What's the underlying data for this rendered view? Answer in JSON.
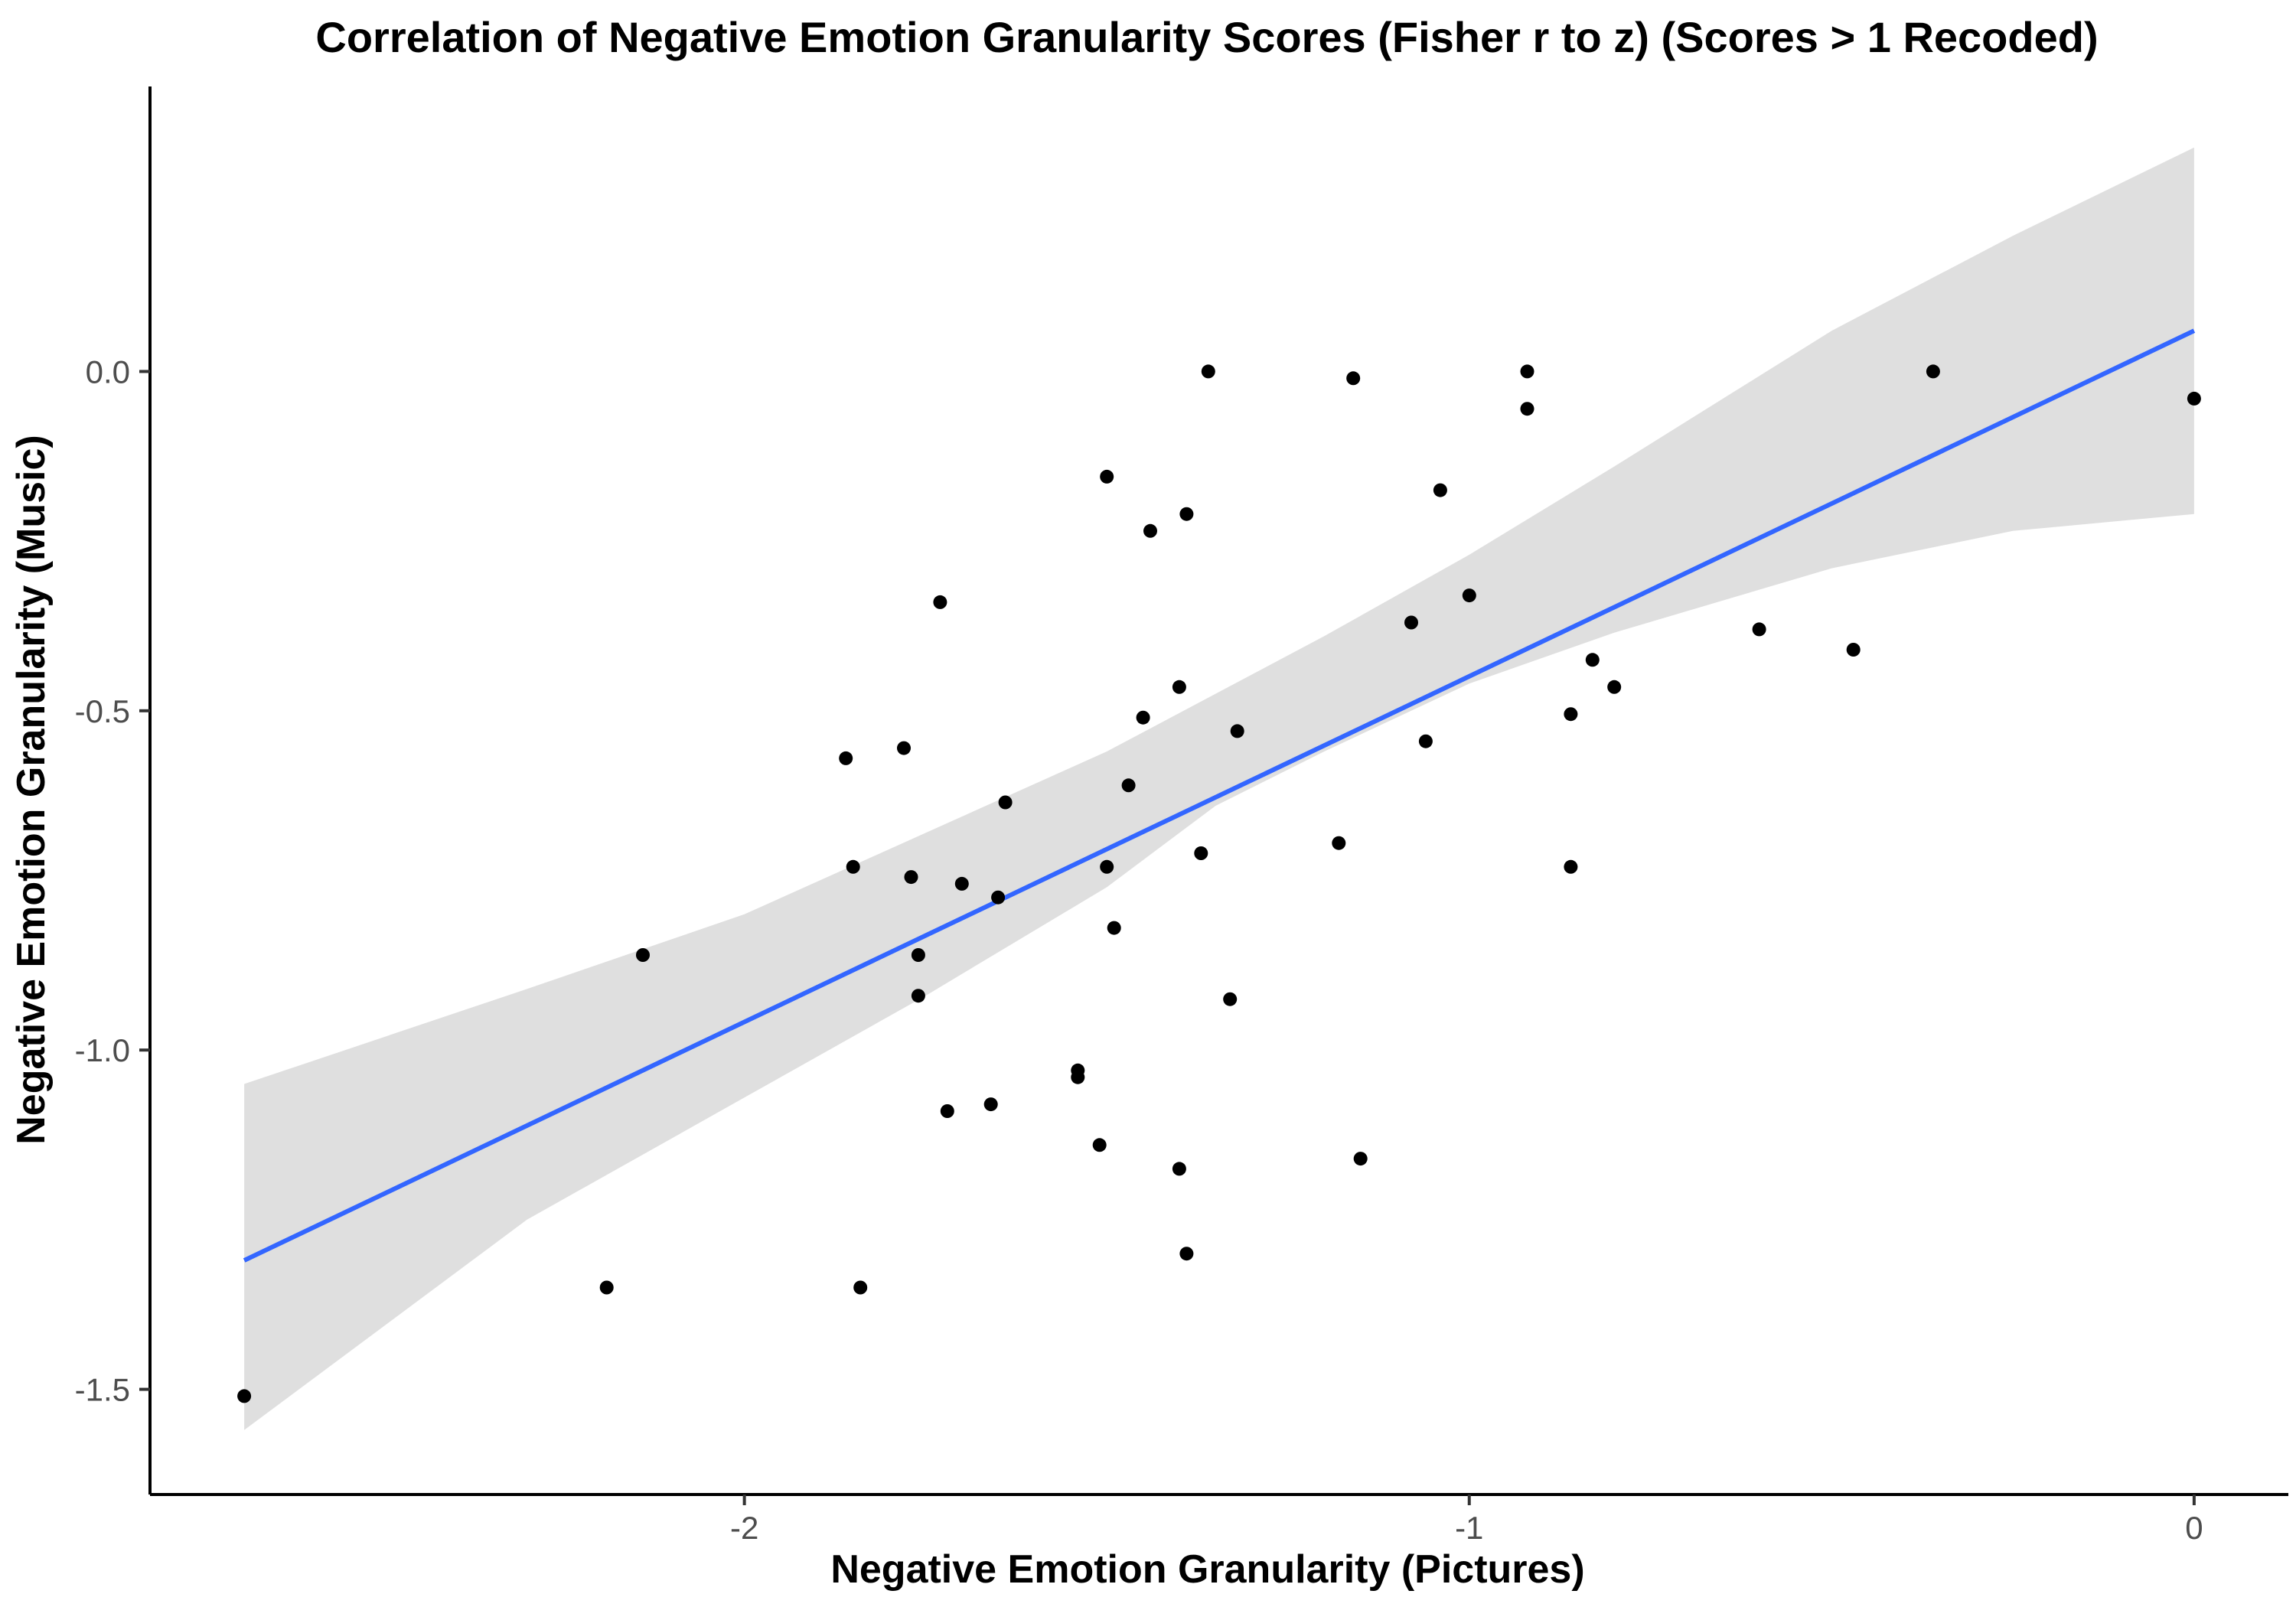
{
  "chart_data": {
    "type": "scatter",
    "title": "Correlation of Negative Emotion Granularity Scores (Fisher r to z) (Scores > 1 Recoded)",
    "xlabel": "Negative Emotion Granularity (Pictures)",
    "ylabel": "Negative Emotion Granularity (Music)",
    "xlim": [
      -2.82,
      0.13
    ],
    "ylim": [
      -1.655,
      0.42
    ],
    "x_ticks": [
      -2,
      -1,
      0
    ],
    "x_tick_labels": [
      "-2",
      "-1",
      "0"
    ],
    "y_ticks": [
      0.0,
      -0.5,
      -1.0,
      -1.5
    ],
    "y_tick_labels": [
      "0.0",
      "-0.5",
      "-1.0",
      "-1.5"
    ],
    "grid": false,
    "legend": "none",
    "colors": {
      "points": "#000000",
      "fit_line": "#3366FF",
      "confidence_band": "#d9d9d9",
      "axis": "#000000",
      "tick_labels": "#4d4d4d"
    },
    "points": [
      {
        "x": -2.69,
        "y": -1.51
      },
      {
        "x": -2.19,
        "y": -1.35
      },
      {
        "x": -2.14,
        "y": -0.86
      },
      {
        "x": -1.86,
        "y": -0.57
      },
      {
        "x": -1.85,
        "y": -0.73
      },
      {
        "x": -1.84,
        "y": -1.35
      },
      {
        "x": -1.78,
        "y": -0.555
      },
      {
        "x": -1.77,
        "y": -0.745
      },
      {
        "x": -1.76,
        "y": -0.86
      },
      {
        "x": -1.76,
        "y": -0.92
      },
      {
        "x": -1.73,
        "y": -0.34
      },
      {
        "x": -1.72,
        "y": -1.09
      },
      {
        "x": -1.7,
        "y": -0.755
      },
      {
        "x": -1.66,
        "y": -1.08
      },
      {
        "x": -1.65,
        "y": -0.775
      },
      {
        "x": -1.64,
        "y": -0.635
      },
      {
        "x": -1.54,
        "y": -1.03
      },
      {
        "x": -1.54,
        "y": -1.04
      },
      {
        "x": -1.51,
        "y": -1.14
      },
      {
        "x": -1.5,
        "y": -0.155
      },
      {
        "x": -1.5,
        "y": -0.73
      },
      {
        "x": -1.49,
        "y": -0.82
      },
      {
        "x": -1.47,
        "y": -0.61
      },
      {
        "x": -1.45,
        "y": -0.51
      },
      {
        "x": -1.44,
        "y": -0.235
      },
      {
        "x": -1.4,
        "y": -0.465
      },
      {
        "x": -1.4,
        "y": -1.175
      },
      {
        "x": -1.39,
        "y": -0.21
      },
      {
        "x": -1.39,
        "y": -1.3
      },
      {
        "x": -1.37,
        "y": -0.71
      },
      {
        "x": -1.36,
        "y": 0.0
      },
      {
        "x": -1.33,
        "y": -0.925
      },
      {
        "x": -1.32,
        "y": -0.53
      },
      {
        "x": -1.18,
        "y": -0.695
      },
      {
        "x": -1.16,
        "y": -0.01
      },
      {
        "x": -1.15,
        "y": -1.16
      },
      {
        "x": -1.08,
        "y": -0.37
      },
      {
        "x": -1.06,
        "y": -0.545
      },
      {
        "x": -1.04,
        "y": -0.175
      },
      {
        "x": -1.0,
        "y": -0.33
      },
      {
        "x": -0.92,
        "y": 0.0
      },
      {
        "x": -0.92,
        "y": -0.055
      },
      {
        "x": -0.86,
        "y": -0.505
      },
      {
        "x": -0.86,
        "y": -0.73
      },
      {
        "x": -0.83,
        "y": -0.425
      },
      {
        "x": -0.8,
        "y": -0.465
      },
      {
        "x": -0.6,
        "y": -0.38
      },
      {
        "x": -0.47,
        "y": -0.41
      },
      {
        "x": -0.36,
        "y": 0.0
      },
      {
        "x": 0.0,
        "y": -0.04
      }
    ],
    "fit_line": {
      "x": [
        -2.69,
        0.0
      ],
      "y": [
        -1.31,
        0.06
      ]
    },
    "confidence_band": {
      "x": [
        -2.69,
        -2.3,
        -2.0,
        -1.75,
        -1.5,
        -1.35,
        -1.2,
        -1.0,
        -0.8,
        -0.5,
        -0.25,
        0.0
      ],
      "upper": [
        -1.05,
        -0.91,
        -0.8,
        -0.68,
        -0.56,
        -0.475,
        -0.39,
        -0.27,
        -0.14,
        0.06,
        0.2,
        0.33
      ],
      "lower": [
        -1.56,
        -1.25,
        -1.07,
        -0.92,
        -0.76,
        -0.64,
        -0.56,
        -0.46,
        -0.385,
        -0.29,
        -0.235,
        -0.21
      ]
    }
  }
}
